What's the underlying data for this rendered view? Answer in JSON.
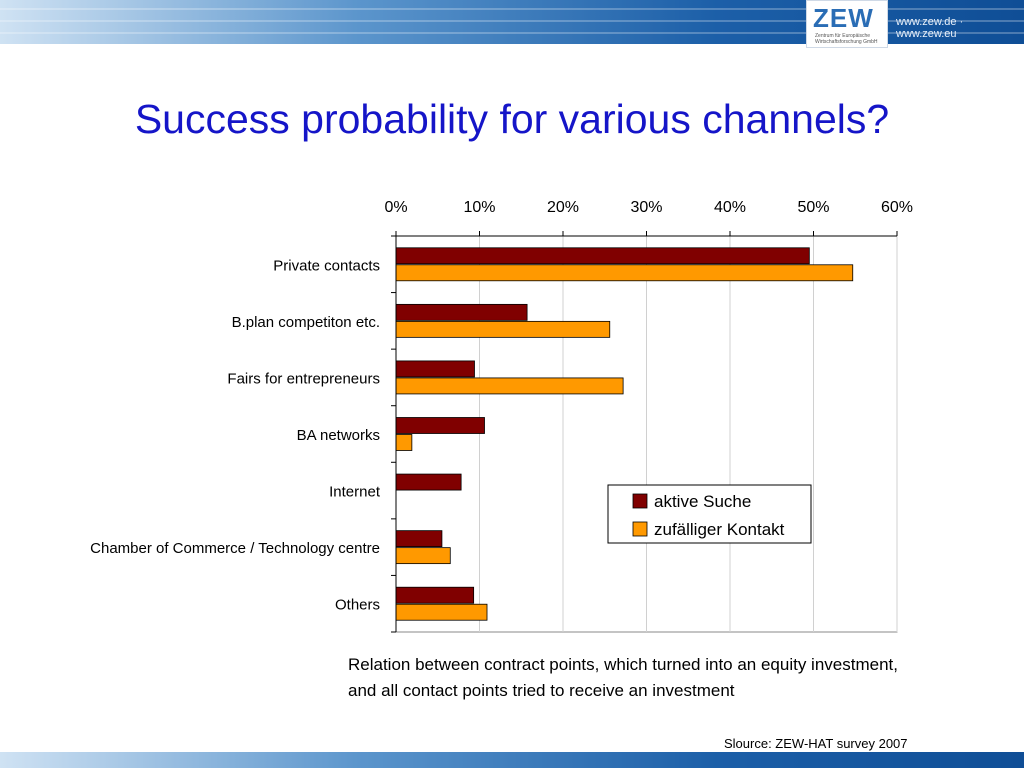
{
  "header": {
    "logo_text": "ZEW",
    "logo_subtitle": "Zentrum für Europäische Wirtschaftsforschung GmbH",
    "website": "www.zew.de · www.zew.eu"
  },
  "slide": {
    "title": "Success probability for various channels?",
    "caption_line1": "Relation between contract points, which turned into an equity investment,",
    "caption_line2": "and all contact points tried to receive an investment",
    "source": "Slource: ZEW-HAT survey 2007"
  },
  "colors": {
    "title": "#1515c8",
    "series_aktive": "#800000",
    "series_zufaellig": "#ff9900"
  },
  "chart_data": {
    "type": "bar",
    "orientation": "horizontal",
    "categories": [
      "Private contacts",
      "B.plan competiton etc.",
      "Fairs for entrepreneurs",
      "BA networks",
      "Internet",
      "Chamber of Commerce / Technology centre",
      "Others"
    ],
    "series": [
      {
        "name": "aktive Suche",
        "color": "#800000",
        "values": [
          49.5,
          15.7,
          9.4,
          10.6,
          7.8,
          5.5,
          9.3
        ]
      },
      {
        "name": "zufälliger Kontakt",
        "color": "#ff9900",
        "values": [
          54.7,
          25.6,
          27.2,
          1.9,
          null,
          6.5,
          10.9
        ]
      }
    ],
    "xlim": [
      0,
      60
    ],
    "x_ticks": [
      "0%",
      "10%",
      "20%",
      "30%",
      "40%",
      "50%",
      "60%"
    ],
    "x_axis_position": "top",
    "grid": true,
    "legend_position": "bottom-right"
  }
}
